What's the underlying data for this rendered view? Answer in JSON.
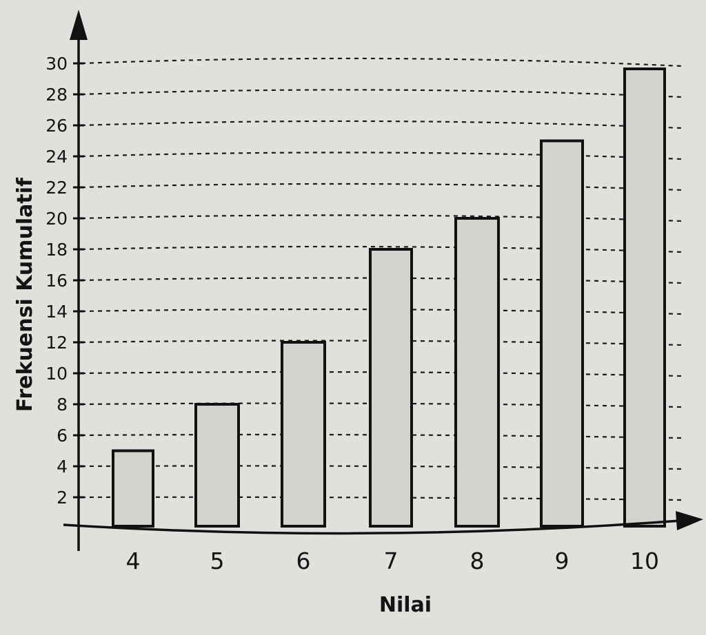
{
  "chart_data": {
    "type": "bar",
    "categories": [
      "4",
      "5",
      "6",
      "7",
      "8",
      "9",
      "10"
    ],
    "values": [
      5,
      8,
      12,
      18,
      20,
      25,
      30
    ],
    "xlabel": "Nilai",
    "ylabel": "Frekuensi Kumulatif",
    "ylim": [
      0,
      30
    ],
    "yticks": [
      2,
      4,
      6,
      8,
      10,
      12,
      14,
      16,
      18,
      20,
      22,
      24,
      26,
      28,
      30
    ],
    "grid": true,
    "colors": {
      "bar_fill": "#d4d2ce",
      "bar_stroke": "#111111",
      "background": "#e2e0dc"
    }
  }
}
